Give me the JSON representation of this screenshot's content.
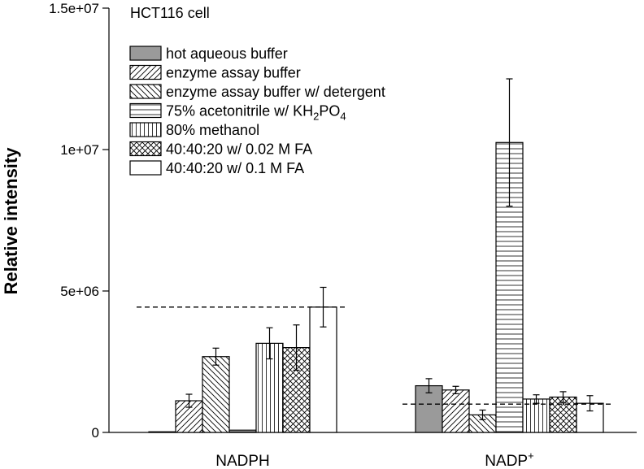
{
  "chart_data": {
    "type": "bar",
    "title": "HCT116 cell",
    "ylabel": "Relative intensity",
    "xlabel": "",
    "ylim": [
      0,
      15000000
    ],
    "yticks": [
      {
        "value": 0,
        "label": "0"
      },
      {
        "value": 5000000,
        "label": "5e+06"
      },
      {
        "value": 10000000,
        "label": "1e+07"
      },
      {
        "value": 15000000,
        "label": "1.5e+07"
      }
    ],
    "categories": [
      {
        "main": "NADPH",
        "sup": ""
      },
      {
        "main": "NADP",
        "sup": "+"
      }
    ],
    "series": [
      {
        "name": "hot aqueous buffer",
        "pattern": "solid-gray",
        "values": [
          20000,
          1650000
        ],
        "errors": [
          0,
          250000
        ]
      },
      {
        "name": "enzyme assay buffer",
        "pattern": "diag-right",
        "values": [
          1120000,
          1500000
        ],
        "errors": [
          230000,
          130000
        ]
      },
      {
        "name": "enzyme assay buffer w/ detergent",
        "pattern": "diag-left",
        "values": [
          2680000,
          620000
        ],
        "errors": [
          300000,
          170000
        ]
      },
      {
        "name": "75% acetonitrile w/ KH2PO4",
        "legend_parts": [
          "75% acetonitrile w/ KH",
          "2",
          "PO",
          "4"
        ],
        "pattern": "horizontal",
        "values": [
          80000,
          10250000
        ],
        "errors": [
          0,
          2250000
        ]
      },
      {
        "name": "80% methanol",
        "pattern": "vertical",
        "values": [
          3150000,
          1180000
        ],
        "errors": [
          550000,
          150000
        ]
      },
      {
        "name": "40:40:20 w/ 0.02 M FA",
        "pattern": "crosshatch",
        "values": [
          3000000,
          1250000
        ],
        "errors": [
          800000,
          190000
        ]
      },
      {
        "name": "40:40:20 w/ 0.1 M FA",
        "pattern": "white",
        "values": [
          4430000,
          1030000
        ],
        "errors": [
          700000,
          270000
        ]
      }
    ],
    "reference_lines": [
      {
        "category": "NADPH",
        "value": 4430000,
        "style": "dashed"
      },
      {
        "category": "NADP+",
        "value": 1000000,
        "style": "dashed"
      }
    ],
    "grid": false,
    "legend_placement": "top-left"
  },
  "colors": {
    "solid_fill": "#9a9a9a",
    "line": "#000000",
    "background": "#ffffff"
  }
}
